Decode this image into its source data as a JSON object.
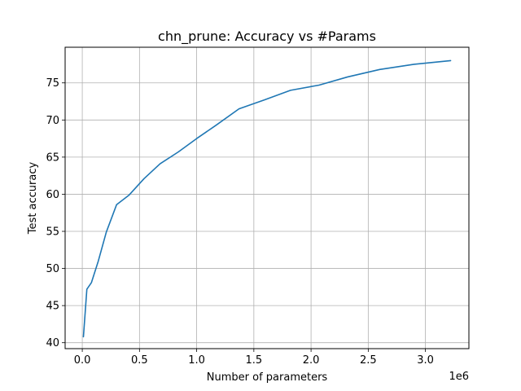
{
  "chart_data": {
    "type": "line",
    "title": "chn_prune: Accuracy vs #Params",
    "xlabel": "Number of parameters",
    "ylabel": "Test accuracy",
    "x_offset_label": "1e6",
    "xlim": [
      -150000,
      3380000
    ],
    "ylim": [
      39.2,
      79.8
    ],
    "x_ticks": [
      0,
      500000,
      1000000,
      1500000,
      2000000,
      2500000,
      3000000
    ],
    "x_tick_labels": [
      "0.0",
      "0.5",
      "1.0",
      "1.5",
      "2.0",
      "2.5",
      "3.0"
    ],
    "y_ticks": [
      40,
      45,
      50,
      55,
      60,
      65,
      70,
      75
    ],
    "y_tick_labels": [
      "40",
      "45",
      "50",
      "55",
      "60",
      "65",
      "70",
      "75"
    ],
    "grid": true,
    "series": [
      {
        "color": "#1f77b4",
        "x": [
          10000,
          40000,
          80000,
          140000,
          210000,
          300000,
          410000,
          540000,
          680000,
          840000,
          1000000,
          1170000,
          1370000,
          1590000,
          1820000,
          2070000,
          2320000,
          2600000,
          2900000,
          3220000
        ],
        "y": [
          40.8,
          47.2,
          48.1,
          51.0,
          54.9,
          58.6,
          59.9,
          62.1,
          64.1,
          65.7,
          67.5,
          69.3,
          71.5,
          72.7,
          74.0,
          74.7,
          75.8,
          76.8,
          77.5,
          78.0
        ]
      }
    ]
  }
}
